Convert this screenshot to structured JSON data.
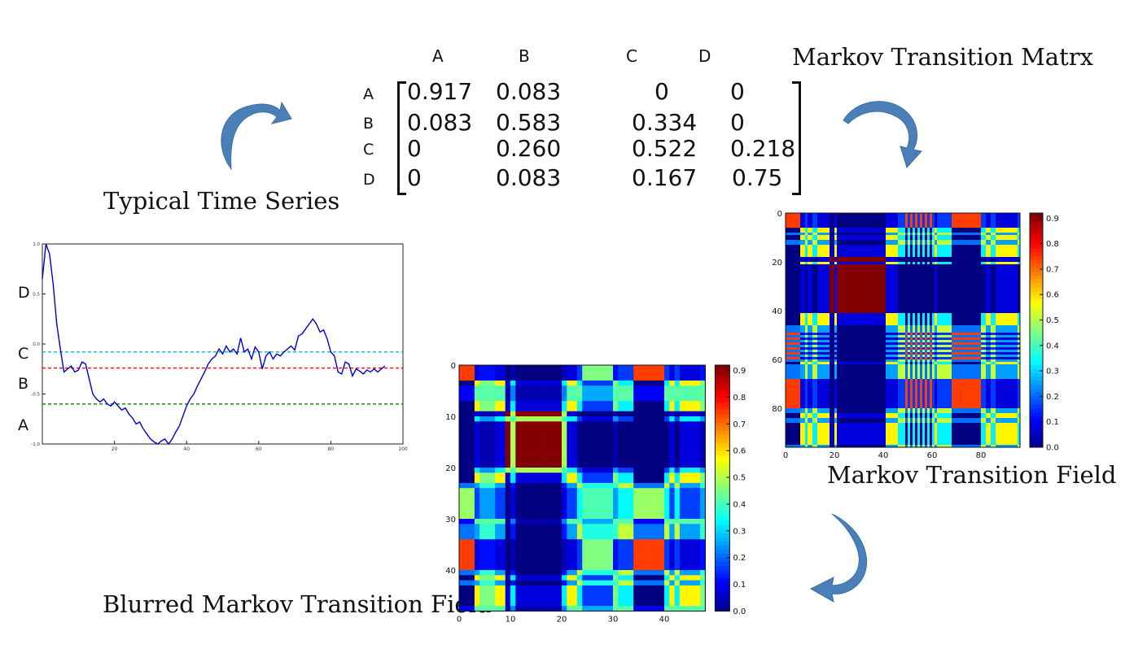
{
  "captions": {
    "time_series": "Typical Time Series",
    "matrix": "Markov Transition Matrx",
    "mtf": "Markov Transition Field",
    "blurred": "Blurred Markov Transition Field"
  },
  "matrix": {
    "cols": [
      "A",
      "B",
      "C",
      "D"
    ],
    "rows": [
      "A",
      "B",
      "C",
      "D"
    ],
    "values": [
      [
        "0.917",
        "0.083",
        "0",
        "0"
      ],
      [
        "0.083",
        "0.583",
        "0.334",
        "0"
      ],
      [
        "0",
        "0.260",
        "0.522",
        "0.218"
      ],
      [
        "0",
        "0.083",
        "0.167",
        "0.75"
      ]
    ]
  },
  "colors": {
    "arrow_fill": "#4a7fb8",
    "series_line": "#0000cc",
    "level_cyan": "#00bfbf",
    "level_red": "#ff0000",
    "level_green": "#008000"
  },
  "chart_data": [
    {
      "type": "line",
      "x_ticks": [
        "20",
        "40",
        "60",
        "80",
        "100"
      ],
      "y_ticks": [
        "1.0",
        "0.5",
        "0.0",
        "-0.5",
        "-1.0"
      ],
      "xlim": [
        0,
        100
      ],
      "ylim": [
        -1.0,
        1.0
      ],
      "level_labels": [
        "D",
        "C",
        "B",
        "A"
      ],
      "thresholds": [
        -0.08,
        -0.24,
        -0.6
      ],
      "series": [
        {
          "x": [
            0,
            1,
            2,
            3,
            4,
            5,
            6,
            7,
            8,
            9,
            10,
            11,
            12,
            13,
            14,
            15,
            16,
            17,
            18,
            19,
            20,
            21,
            22,
            23,
            24,
            25,
            26,
            27,
            28,
            29,
            30,
            31,
            32,
            33,
            34,
            35,
            36,
            37,
            38,
            39,
            40,
            41,
            42,
            43,
            44,
            45,
            46,
            47,
            48,
            49,
            50,
            51,
            52,
            53,
            54,
            55,
            56,
            57,
            58,
            59,
            60,
            61,
            62,
            63,
            64,
            65,
            66,
            67,
            68,
            69,
            70,
            71,
            72,
            73,
            74,
            75,
            76,
            77,
            78,
            79,
            80,
            81,
            82,
            83,
            84,
            85,
            86,
            87,
            88,
            89,
            90,
            91,
            92,
            93,
            94,
            95
          ],
          "y": [
            0.65,
            1.0,
            0.9,
            0.6,
            0.2,
            -0.05,
            -0.28,
            -0.25,
            -0.22,
            -0.28,
            -0.26,
            -0.18,
            -0.2,
            -0.35,
            -0.5,
            -0.55,
            -0.58,
            -0.55,
            -0.6,
            -0.62,
            -0.58,
            -0.62,
            -0.66,
            -0.64,
            -0.7,
            -0.74,
            -0.8,
            -0.78,
            -0.85,
            -0.9,
            -0.95,
            -0.98,
            -1.0,
            -0.97,
            -0.95,
            -1.0,
            -0.95,
            -0.88,
            -0.82,
            -0.72,
            -0.62,
            -0.55,
            -0.5,
            -0.42,
            -0.35,
            -0.28,
            -0.2,
            -0.15,
            -0.12,
            -0.05,
            -0.1,
            -0.02,
            -0.08,
            -0.05,
            -0.1,
            0.06,
            -0.08,
            -0.05,
            -0.15,
            -0.03,
            -0.08,
            -0.25,
            -0.12,
            -0.08,
            -0.15,
            -0.1,
            -0.12,
            -0.08,
            -0.05,
            -0.02,
            -0.06,
            0.08,
            0.1,
            0.15,
            0.2,
            0.25,
            0.2,
            0.12,
            0.14,
            0.05,
            -0.08,
            -0.12,
            -0.28,
            -0.3,
            -0.18,
            -0.2,
            -0.32,
            -0.25,
            -0.27,
            -0.3,
            -0.26,
            -0.28,
            -0.25,
            -0.28,
            -0.25,
            -0.22
          ]
        }
      ]
    },
    {
      "type": "heatmap",
      "x_ticks": [
        "0",
        "20",
        "40",
        "60",
        "80"
      ],
      "y_ticks": [
        "0",
        "20",
        "40",
        "60",
        "80"
      ],
      "colorbar_ticks": [
        "0.9",
        "0.8",
        "0.7",
        "0.6",
        "0.5",
        "0.4",
        "0.3",
        "0.2",
        "0.1",
        "0.0"
      ],
      "size": 96
    },
    {
      "type": "heatmap",
      "x_ticks": [
        "0",
        "10",
        "20",
        "30",
        "40"
      ],
      "y_ticks": [
        "0",
        "10",
        "20",
        "30",
        "40"
      ],
      "colorbar_ticks": [
        "0.9",
        "0.8",
        "0.7",
        "0.6",
        "0.5",
        "0.4",
        "0.3",
        "0.2",
        "0.1",
        "0.0"
      ],
      "size": 48
    }
  ]
}
